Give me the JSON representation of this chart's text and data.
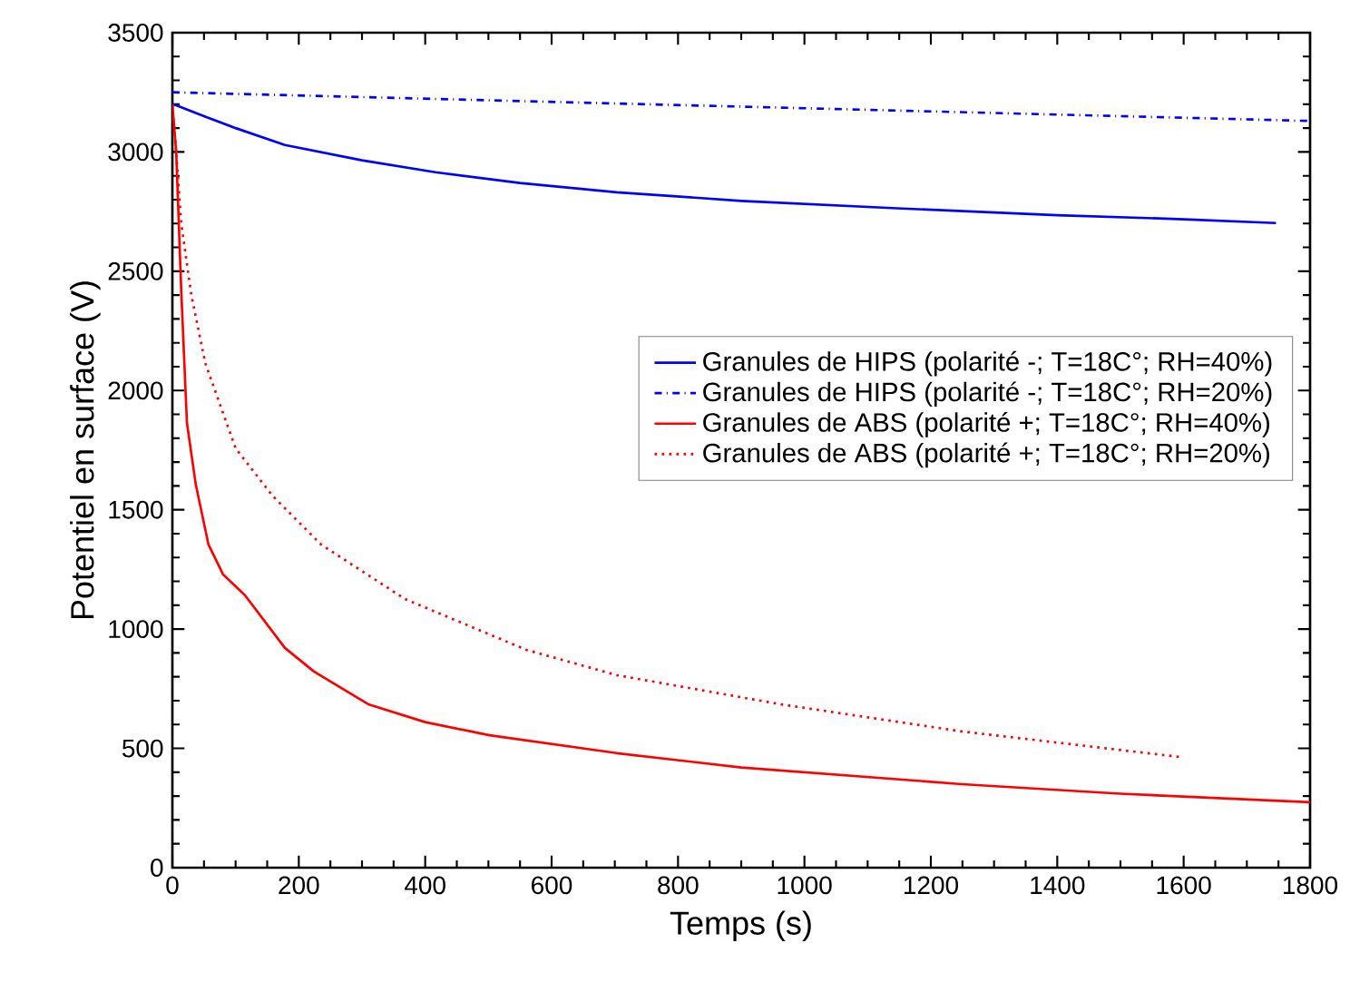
{
  "chart_data": {
    "type": "line",
    "xlabel": "Temps (s)",
    "ylabel": "Potentiel en surface (V)",
    "xlim": [
      0,
      1800
    ],
    "xticks": [
      0,
      200,
      400,
      600,
      800,
      1000,
      1200,
      1400,
      1600,
      1800
    ],
    "ylim": [
      0,
      3500
    ],
    "yticks": [
      0,
      500,
      1000,
      1500,
      2000,
      2500,
      3000,
      3500
    ],
    "grid": false,
    "legend": "right",
    "marker": "none",
    "series": [
      {
        "name": "Granules de HIPS (polarité -; T=18C°; RH=40%)",
        "color": "#0000ff",
        "line_style": "solid",
        "x": [
          0,
          6,
          50,
          100,
          178,
          300,
          416,
          550,
          703,
          900,
          1154,
          1400,
          1600,
          1746
        ],
        "values": [
          3200,
          3196,
          3150,
          3100,
          3029,
          2965,
          2915,
          2870,
          2831,
          2795,
          2763,
          2735,
          2718,
          2702
        ]
      },
      {
        "name": "Granules de HIPS (polarité -; T=18C°; RH=20%)",
        "color": "#0000ff",
        "line_style": "dashdot",
        "x": [
          0,
          1800
        ],
        "values": [
          3250,
          3130
        ]
      },
      {
        "name": "Granules de ABS (polarité +; T=18C°; RH=40%)",
        "color": "#ff0000",
        "line_style": "solid",
        "x": [
          0,
          6,
          14,
          23,
          37,
          57,
          80,
          115,
          178,
          224,
          310,
          400,
          502,
          703,
          900,
          1249,
          1500,
          1800
        ],
        "values": [
          3200,
          3000,
          2420,
          1865,
          1606,
          1355,
          1230,
          1141,
          921,
          822,
          685,
          610,
          555,
          480,
          420,
          350,
          310,
          274
        ]
      },
      {
        "name": "Granules de ABS (polarité +; T=18C°; RH=20%)",
        "color": "#ff0000",
        "line_style": "dotted",
        "x": [
          0,
          6,
          14,
          30,
          52,
          100,
          158,
          235,
          368,
          560,
          703,
          962,
          1249,
          1594
        ],
        "values": [
          3200,
          3000,
          2700,
          2400,
          2115,
          1758,
          1560,
          1355,
          1126,
          913,
          807,
          685,
          571,
          464
        ]
      }
    ]
  }
}
